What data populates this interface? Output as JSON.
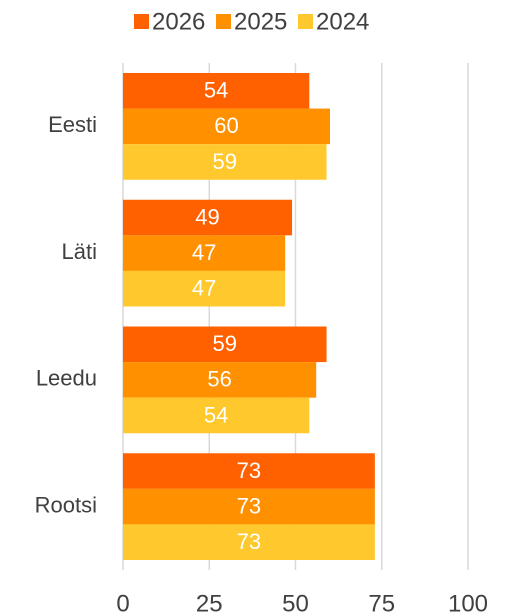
{
  "chart_data": {
    "type": "hbar",
    "categories": [
      "Eesti",
      "Läti",
      "Leedu",
      "Rootsi"
    ],
    "series": [
      {
        "name": "2026",
        "color": "#ff6000",
        "values": [
          54,
          49,
          59,
          73
        ]
      },
      {
        "name": "2025",
        "color": "#ff9000",
        "values": [
          60,
          47,
          56,
          73
        ]
      },
      {
        "name": "2024",
        "color": "#ffc82c",
        "values": [
          59,
          47,
          54,
          73
        ]
      }
    ],
    "xlim": [
      0,
      100
    ],
    "xticks": [
      0,
      25,
      50,
      75,
      100
    ],
    "grid": true,
    "legend": "top"
  }
}
